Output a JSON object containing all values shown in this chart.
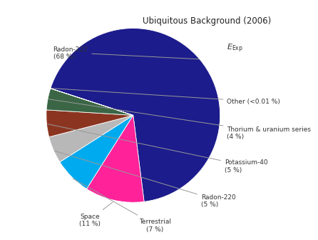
{
  "title": "Ubiquitous Background (2006)",
  "subtitle": "$E_{\\mathrm{Exp}}$",
  "labels_short": [
    "Radon-222\n(68 %)",
    "Space\n(11 %)",
    "Terrestrial\n(7 %)",
    "Radon-220\n(5 %)",
    "Potassium-40\n(5 %)",
    "Thorium & uranium series\n(4 %)",
    "Other (<0.01 %)"
  ],
  "sizes": [
    68,
    11,
    7,
    5,
    5,
    4,
    0.01
  ],
  "colors": [
    "#1c1c8c",
    "#ff2299",
    "#00aaee",
    "#b8b8b8",
    "#8b3520",
    "#3a6645",
    "#d0d0d0"
  ],
  "startangle": 162,
  "background_color": "#ffffff"
}
